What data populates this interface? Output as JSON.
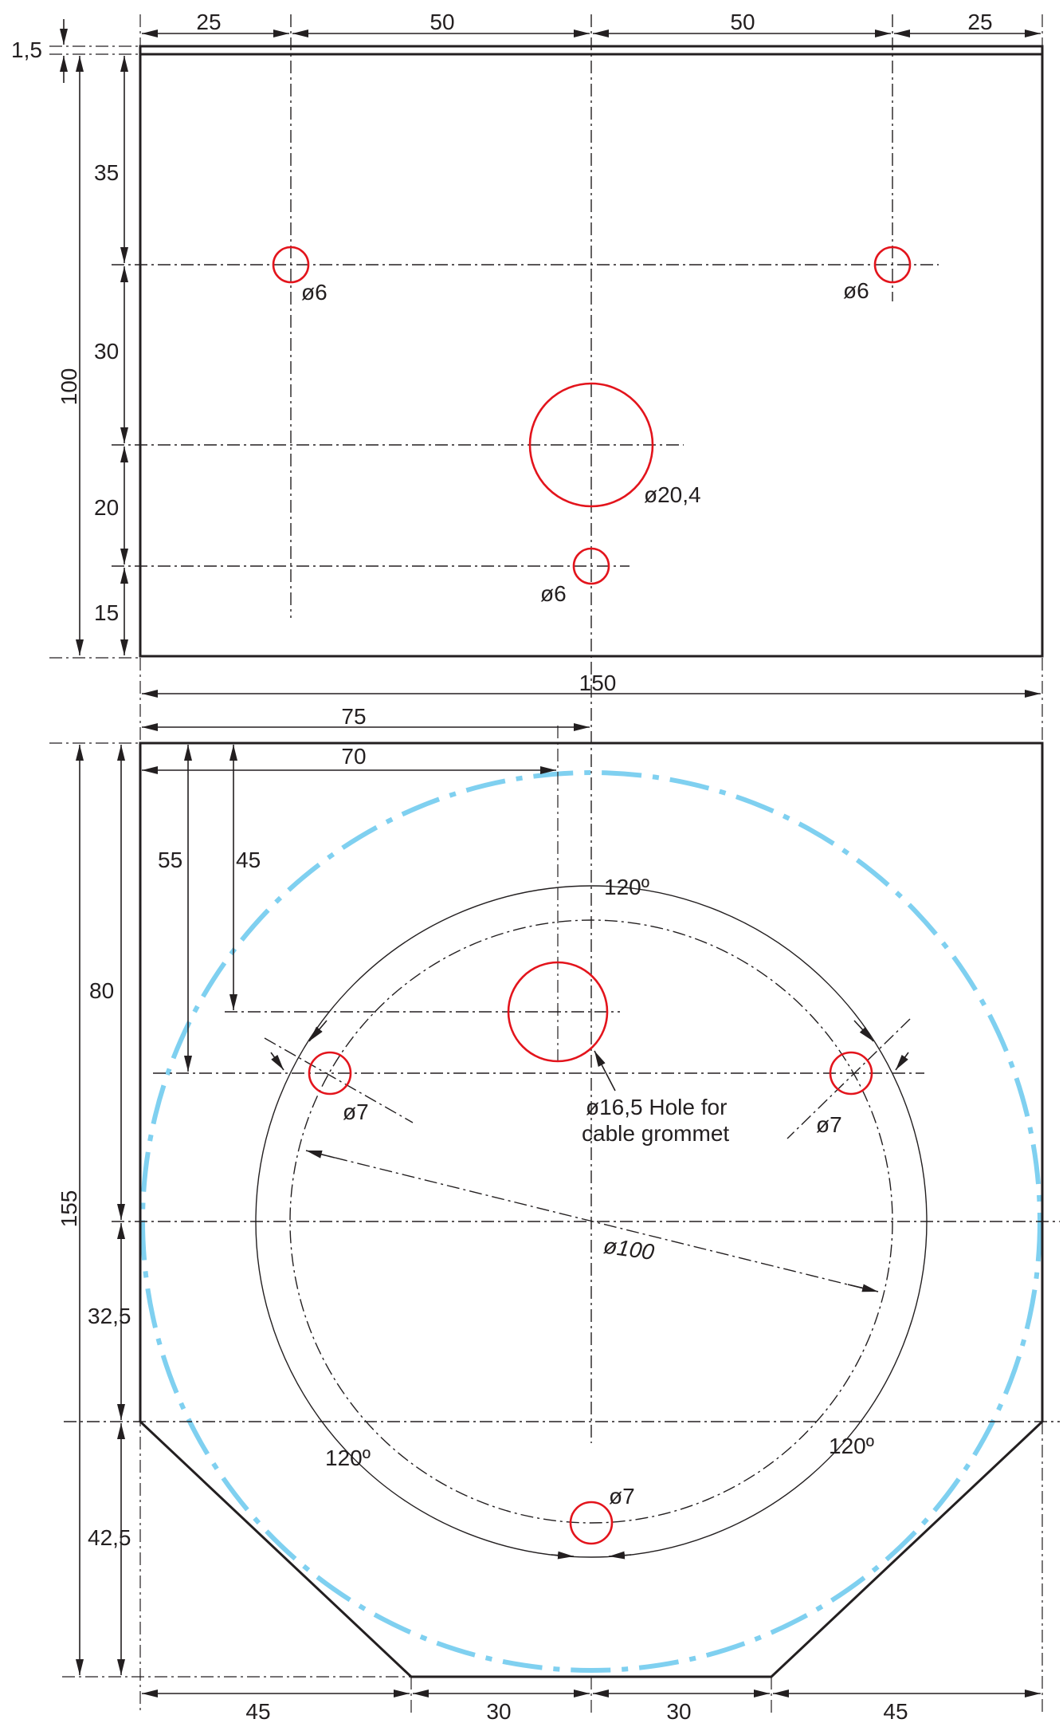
{
  "top_view": {
    "dims": {
      "seg_left": "25",
      "seg_mid_left": "50",
      "seg_mid_right": "50",
      "seg_right": "25",
      "thickness": "1,5",
      "height_total": "100",
      "v_35": "35",
      "v_30": "30",
      "v_20": "20",
      "v_15": "15",
      "width_total": "150"
    },
    "holes": {
      "left_small": "ø6",
      "right_small": "ø6",
      "center_large": "ø20,4",
      "bottom_small": "ø6"
    }
  },
  "bottom_view": {
    "dims": {
      "h_75": "75",
      "h_70": "70",
      "v_55": "55",
      "v_45": "45",
      "v_80": "80",
      "height_total": "155",
      "v_32_5": "32,5",
      "v_42_5": "42,5",
      "b_45_left": "45",
      "b_30_left": "30",
      "b_30_right": "30",
      "b_45_right": "45"
    },
    "angles": {
      "top": "120º",
      "left": "120º",
      "right": "120º"
    },
    "holes": {
      "left": "ø7",
      "right": "ø7",
      "bottom": "ø7",
      "grommet_line1": "ø16,5 Hole for",
      "grommet_line2": "cable grommet"
    },
    "pitch_circle": "ø100"
  },
  "colors": {
    "outline": "#231f20",
    "holes": "#e3141c",
    "envelope": "#7fd0f0"
  }
}
